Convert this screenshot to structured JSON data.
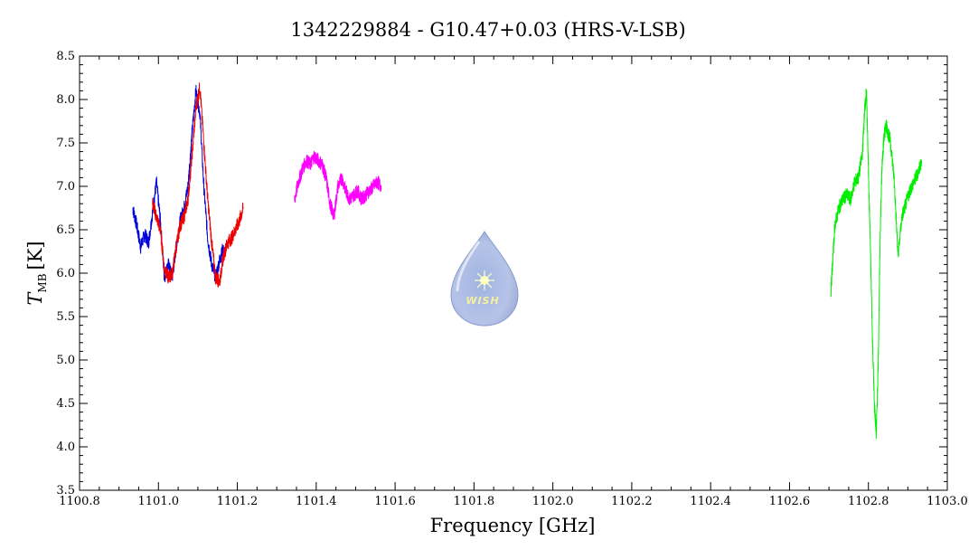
{
  "chart_data": {
    "type": "line",
    "title": "1342229884 - G10.47+0.03 (HRS-V-LSB)",
    "xlabel": "Frequency [GHz]",
    "ylabel": {
      "symbol": "T",
      "subscript": "MB",
      "unit": "[K]"
    },
    "xlim": [
      1100.8,
      1103.0
    ],
    "ylim": [
      3.5,
      8.5
    ],
    "xticks": [
      "1100.8",
      "1101.0",
      "1101.2",
      "1101.4",
      "1101.6",
      "1101.8",
      "1102.0",
      "1102.2",
      "1102.4",
      "1102.6",
      "1102.8",
      "1103.0"
    ],
    "yticks": [
      "3.5",
      "4.0",
      "4.5",
      "5.0",
      "5.5",
      "6.0",
      "6.5",
      "7.0",
      "7.5",
      "8.0",
      "8.5"
    ],
    "grid": false,
    "watermark": "WISH",
    "series": [
      {
        "color": "#0000dd",
        "x": [
          1100.935,
          1100.945,
          1100.955,
          1100.965,
          1100.975,
          1100.985,
          1100.995,
          1101.005,
          1101.015,
          1101.025,
          1101.035,
          1101.045,
          1101.055,
          1101.065,
          1101.075,
          1101.085,
          1101.095,
          1101.105,
          1101.115,
          1101.125,
          1101.135,
          1101.145,
          1101.155,
          1101.165
        ],
        "y": [
          6.75,
          6.55,
          6.3,
          6.45,
          6.35,
          6.7,
          7.05,
          6.6,
          5.95,
          6.1,
          5.95,
          6.3,
          6.6,
          6.75,
          7.0,
          7.6,
          8.1,
          7.85,
          7.0,
          6.4,
          6.1,
          5.95,
          6.15,
          6.3
        ]
      },
      {
        "color": "#ee0000",
        "x": [
          1100.985,
          1100.995,
          1101.005,
          1101.015,
          1101.025,
          1101.035,
          1101.045,
          1101.055,
          1101.065,
          1101.075,
          1101.085,
          1101.095,
          1101.105,
          1101.115,
          1101.125,
          1101.135,
          1101.145,
          1101.155,
          1101.165,
          1101.175,
          1101.185,
          1101.195,
          1101.205,
          1101.215
        ],
        "y": [
          6.8,
          6.65,
          6.5,
          6.05,
          5.95,
          6.0,
          6.3,
          6.55,
          6.65,
          6.85,
          7.35,
          7.9,
          8.15,
          7.5,
          6.85,
          6.35,
          5.95,
          5.9,
          6.2,
          6.35,
          6.4,
          6.5,
          6.6,
          6.75
        ]
      },
      {
        "color": "#ff00ff",
        "x": [
          1101.345,
          1101.355,
          1101.365,
          1101.375,
          1101.385,
          1101.395,
          1101.405,
          1101.415,
          1101.425,
          1101.435,
          1101.445,
          1101.455,
          1101.465,
          1101.475,
          1101.485,
          1101.495,
          1101.505,
          1101.515,
          1101.525,
          1101.535,
          1101.545,
          1101.555,
          1101.565
        ],
        "y": [
          6.85,
          7.05,
          7.2,
          7.3,
          7.25,
          7.35,
          7.3,
          7.25,
          7.1,
          6.8,
          6.65,
          7.0,
          7.1,
          6.95,
          6.85,
          6.9,
          6.95,
          6.85,
          6.9,
          6.95,
          7.0,
          7.05,
          7.0
        ]
      },
      {
        "color": "#00ee00",
        "x": [
          1102.705,
          1102.715,
          1102.725,
          1102.735,
          1102.745,
          1102.755,
          1102.765,
          1102.775,
          1102.785,
          1102.79,
          1102.795,
          1102.8,
          1102.805,
          1102.81,
          1102.815,
          1102.82,
          1102.825,
          1102.83,
          1102.835,
          1102.84,
          1102.845,
          1102.85,
          1102.855,
          1102.865,
          1102.875,
          1102.885,
          1102.895,
          1102.905,
          1102.915,
          1102.925,
          1102.935
        ],
        "y": [
          5.8,
          6.55,
          6.75,
          6.85,
          6.9,
          6.85,
          7.05,
          7.1,
          7.4,
          7.85,
          8.1,
          7.2,
          6.3,
          5.3,
          4.5,
          4.15,
          5.0,
          6.5,
          7.3,
          7.6,
          7.7,
          7.6,
          7.55,
          7.1,
          6.2,
          6.65,
          6.8,
          6.95,
          7.05,
          7.15,
          7.3
        ]
      }
    ]
  }
}
